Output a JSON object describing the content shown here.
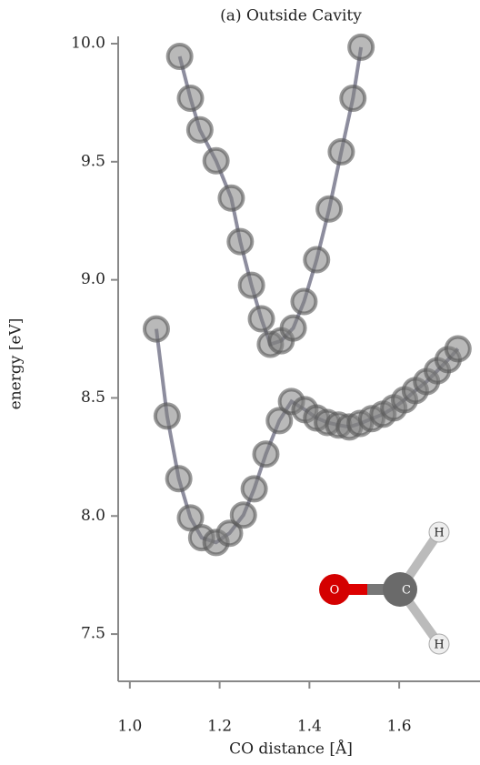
{
  "chart_data": {
    "type": "line",
    "title": "(a) Outside Cavity",
    "xlabel": "CO distance [Å]",
    "ylabel": "energy [eV]",
    "xlim": [
      0.974,
      1.78
    ],
    "ylim": [
      7.3,
      10.0
    ],
    "xticks": [
      {
        "value": 1.0,
        "label": "1.0"
      },
      1.2,
      1.4,
      1.6
    ],
    "yticks": [
      {
        "value": 7.5,
        "label": "7.5"
      },
      {
        "value": 8.0,
        "label": "8.0"
      },
      8.5,
      {
        "value": 9.0,
        "label": "9.0"
      },
      9.5,
      {
        "value": 10.0,
        "label": "10.0"
      }
    ],
    "series": [
      {
        "color": "#808080",
        "x": [
          1.111,
          1.135,
          1.156,
          1.192,
          1.226,
          1.246,
          1.271,
          1.293,
          1.313,
          1.337,
          1.364,
          1.388,
          1.416,
          1.444,
          1.471,
          1.497,
          1.515
        ],
        "values": [
          9.946,
          9.769,
          9.635,
          9.504,
          9.346,
          9.162,
          8.977,
          8.835,
          8.727,
          8.742,
          8.796,
          8.908,
          9.085,
          9.3,
          9.542,
          9.769,
          9.985
        ]
      },
      {
        "color": "#808080",
        "x": [
          1.059,
          1.083,
          1.109,
          1.135,
          1.16,
          1.192,
          1.222,
          1.253,
          1.277,
          1.303,
          1.333,
          1.36,
          1.39,
          1.416,
          1.44,
          1.465,
          1.489,
          1.513,
          1.539,
          1.564,
          1.588,
          1.612,
          1.636,
          1.661,
          1.685,
          1.709,
          1.731
        ],
        "values": [
          8.792,
          8.423,
          8.158,
          7.992,
          7.908,
          7.888,
          7.927,
          8.004,
          8.115,
          8.262,
          8.404,
          8.485,
          8.45,
          8.415,
          8.396,
          8.385,
          8.377,
          8.392,
          8.412,
          8.431,
          8.458,
          8.492,
          8.531,
          8.569,
          8.615,
          8.662,
          8.708
        ]
      }
    ],
    "annotations": [
      "O",
      "C",
      "H",
      "H"
    ]
  }
}
